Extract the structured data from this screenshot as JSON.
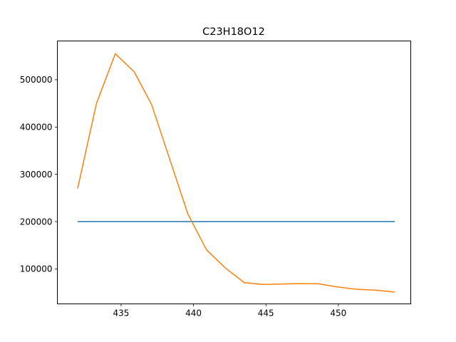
{
  "chart_data": {
    "type": "line",
    "title": "C23H18O12",
    "xlabel": "",
    "ylabel": "",
    "xlim": [
      430.6,
      455.0
    ],
    "ylim": [
      26000,
      582000
    ],
    "xticks": [
      435,
      440,
      445,
      450
    ],
    "yticks": [
      100000,
      200000,
      300000,
      400000,
      500000
    ],
    "grid": false,
    "legend": "none",
    "series": [
      {
        "color": "#1f77b4",
        "x": [
          432.0,
          453.9
        ],
        "y": [
          200000,
          200000
        ]
      },
      {
        "color": "#ff7f0e",
        "x": [
          432.0,
          433.3,
          434.6,
          435.9,
          437.1,
          438.4,
          439.6,
          440.9,
          442.2,
          443.5,
          444.8,
          446.1,
          447.3,
          448.6,
          449.9,
          451.2,
          452.6,
          453.9
        ],
        "y": [
          270000,
          450000,
          555000,
          517000,
          448000,
          328000,
          217000,
          140000,
          102000,
          71000,
          67000,
          68000,
          69000,
          68500,
          62000,
          57000,
          55000,
          51000
        ]
      }
    ]
  }
}
